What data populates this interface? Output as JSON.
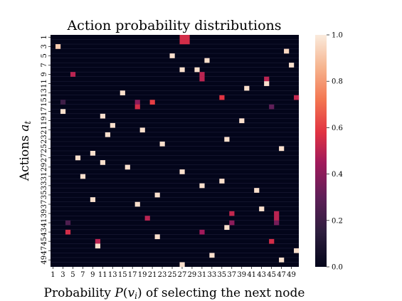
{
  "chart_data": {
    "type": "heatmap",
    "title": "Action probability distributions",
    "xlabel": "Probability P(v_i) of selecting the next node",
    "ylabel": "Actions a_t",
    "x_range": [
      1,
      50
    ],
    "y_range": [
      1,
      50
    ],
    "colorbar": {
      "min": 0.0,
      "max": 1.0,
      "ticks": [
        "0.0",
        "0.2",
        "0.4",
        "0.6",
        "0.8",
        "1.0"
      ],
      "colormap": "rocket"
    },
    "background_value": 0.0,
    "cells": [
      [
        27,
        1,
        0.55
      ],
      [
        28,
        1,
        0.55
      ],
      [
        27,
        2,
        0.55
      ],
      [
        28,
        2,
        0.55
      ],
      [
        2,
        3,
        0.92
      ],
      [
        48,
        4,
        0.95
      ],
      [
        25,
        5,
        0.97
      ],
      [
        32,
        6,
        0.97
      ],
      [
        49,
        7,
        0.97
      ],
      [
        27,
        8,
        0.97
      ],
      [
        30,
        8,
        0.97
      ],
      [
        5,
        9,
        0.5
      ],
      [
        31,
        9,
        0.5
      ],
      [
        31,
        10,
        0.5
      ],
      [
        44,
        10,
        0.5
      ],
      [
        44,
        11,
        0.97
      ],
      [
        40,
        12,
        0.97
      ],
      [
        15,
        13,
        0.97
      ],
      [
        35,
        14,
        0.58
      ],
      [
        50,
        14,
        0.52
      ],
      [
        3,
        15,
        0.2
      ],
      [
        18,
        15,
        0.4
      ],
      [
        21,
        15,
        0.6
      ],
      [
        18,
        16,
        0.55
      ],
      [
        45,
        16,
        0.3
      ],
      [
        3,
        17,
        0.97
      ],
      [
        11,
        18,
        0.97
      ],
      [
        39,
        19,
        0.97
      ],
      [
        13,
        20,
        0.97
      ],
      [
        19,
        21,
        0.97
      ],
      [
        12,
        22,
        0.97
      ],
      [
        36,
        23,
        0.97
      ],
      [
        23,
        24,
        0.97
      ],
      [
        47,
        25,
        0.97
      ],
      [
        9,
        26,
        0.97
      ],
      [
        6,
        27,
        0.97
      ],
      [
        11,
        28,
        0.97
      ],
      [
        16,
        29,
        0.97
      ],
      [
        27,
        30,
        0.97
      ],
      [
        7,
        31,
        0.97
      ],
      [
        35,
        32,
        0.97
      ],
      [
        31,
        33,
        0.97
      ],
      [
        42,
        34,
        0.97
      ],
      [
        22,
        35,
        0.97
      ],
      [
        9,
        36,
        0.97
      ],
      [
        18,
        37,
        0.97
      ],
      [
        43,
        38,
        0.97
      ],
      [
        37,
        39,
        0.52
      ],
      [
        46,
        39,
        0.5
      ],
      [
        20,
        40,
        0.5
      ],
      [
        46,
        40,
        0.5
      ],
      [
        4,
        41,
        0.25
      ],
      [
        37,
        41,
        0.4
      ],
      [
        46,
        41,
        0.35
      ],
      [
        36,
        42,
        0.97
      ],
      [
        4,
        43,
        0.55
      ],
      [
        31,
        43,
        0.45
      ],
      [
        22,
        44,
        0.97
      ],
      [
        10,
        45,
        0.5
      ],
      [
        45,
        45,
        0.55
      ],
      [
        10,
        46,
        0.97
      ],
      [
        50,
        47,
        0.97
      ],
      [
        33,
        48,
        0.97
      ],
      [
        47,
        49,
        0.97
      ],
      [
        27,
        50,
        0.97
      ]
    ]
  }
}
